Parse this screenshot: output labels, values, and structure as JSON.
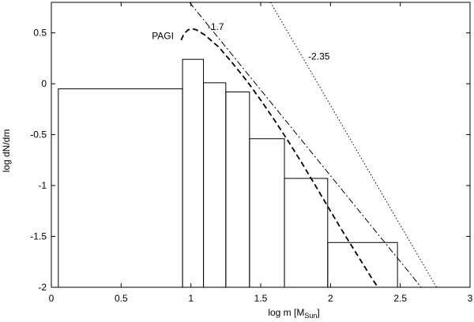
{
  "chart_data": {
    "type": "bar",
    "title": "",
    "xlabel": "log m [M",
    "xlabel_sub": "Sun",
    "xlabel_end": "]",
    "ylabel": "log dN/dm",
    "xlim": [
      0,
      3
    ],
    "ylim": [
      -2,
      0.8
    ],
    "x_ticks": [
      {
        "v": 0,
        "label": "0"
      },
      {
        "v": 0.5,
        "label": "0.5"
      },
      {
        "v": 1,
        "label": "1"
      },
      {
        "v": 1.5,
        "label": "1.5"
      },
      {
        "v": 2,
        "label": "2"
      },
      {
        "v": 2.5,
        "label": "2.5"
      },
      {
        "v": 3,
        "label": "3"
      }
    ],
    "y_ticks": [
      {
        "v": 0.5,
        "label": "0.5"
      },
      {
        "v": 0,
        "label": "0"
      },
      {
        "v": -0.5,
        "label": "-0.5"
      },
      {
        "v": -1,
        "label": "-1"
      },
      {
        "v": -1.5,
        "label": "-1.5"
      },
      {
        "v": -2,
        "label": "-2"
      }
    ],
    "histogram": [
      {
        "x0": 0.05,
        "x1": 0.94,
        "y": -0.05
      },
      {
        "x0": 0.94,
        "x1": 1.09,
        "y": 0.24
      },
      {
        "x0": 1.09,
        "x1": 1.25,
        "y": 0.01
      },
      {
        "x0": 1.25,
        "x1": 1.42,
        "y": -0.08
      },
      {
        "x0": 1.42,
        "x1": 1.67,
        "y": -0.54
      },
      {
        "x0": 1.67,
        "x1": 1.98,
        "y": -0.93
      },
      {
        "x0": 1.98,
        "x1": 2.48,
        "y": -1.56
      }
    ],
    "curves": [
      {
        "label": "PAGI",
        "style": "dashed",
        "points": [
          [
            0.93,
            0.43
          ],
          [
            0.95,
            0.49
          ],
          [
            0.98,
            0.53
          ],
          [
            1.01,
            0.54
          ],
          [
            1.04,
            0.53
          ],
          [
            1.1,
            0.48
          ],
          [
            1.2,
            0.36
          ],
          [
            1.3,
            0.2
          ],
          [
            1.4,
            0.03
          ],
          [
            1.5,
            -0.16
          ],
          [
            1.6,
            -0.36
          ],
          [
            1.7,
            -0.57
          ],
          [
            1.8,
            -0.79
          ],
          [
            1.9,
            -1.02
          ],
          [
            2.0,
            -1.25
          ],
          [
            2.1,
            -1.48
          ],
          [
            2.2,
            -1.7
          ],
          [
            2.3,
            -1.92
          ],
          [
            2.34,
            -2.0
          ]
        ]
      },
      {
        "label": "-1.7",
        "style": "dashdot",
        "points": [
          [
            0.99,
            0.8
          ],
          [
            2.65,
            -2.0
          ]
        ]
      },
      {
        "label": "-2.35",
        "style": "dotted",
        "points": [
          [
            1.57,
            0.8
          ],
          [
            2.76,
            -2.0
          ]
        ]
      }
    ],
    "annotations": [
      {
        "text": "PAGI",
        "x": 0.72,
        "y": 0.47
      },
      {
        "text": "-1.7",
        "x": 1.12,
        "y": 0.56
      },
      {
        "text": "-2.35",
        "x": 1.84,
        "y": 0.27
      }
    ],
    "grid": false,
    "legend": "none"
  }
}
